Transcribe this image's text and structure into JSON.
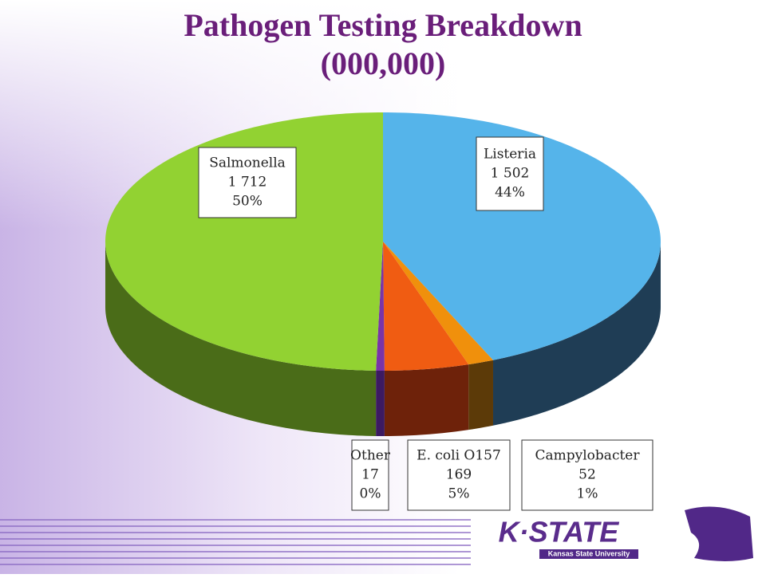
{
  "chart_data": {
    "type": "pie3d",
    "title": "Pathogen Testing Breakdown",
    "subtitle": "(000,000)",
    "categories": [
      "Listeria",
      "Campylobacter",
      "E. coli O157",
      "Other",
      "Salmonella"
    ],
    "values": [
      1502,
      52,
      169,
      17,
      1712
    ],
    "value_labels": [
      "1 502",
      "52",
      "169",
      "17",
      "1 712"
    ],
    "percent_labels": [
      "44%",
      "1%",
      "5%",
      "0%",
      "50%"
    ],
    "colors": [
      "#55b4ea",
      "#f0900c",
      "#f05c12",
      "#7a34a8",
      "#92d232"
    ],
    "side_colors": [
      "#1f3d55",
      "#5c3a08",
      "#6e220a",
      "#3c1a62",
      "#4a6c18"
    ]
  },
  "logo": {
    "wordmark": "K·STATE",
    "tagline": "Kansas State University"
  }
}
